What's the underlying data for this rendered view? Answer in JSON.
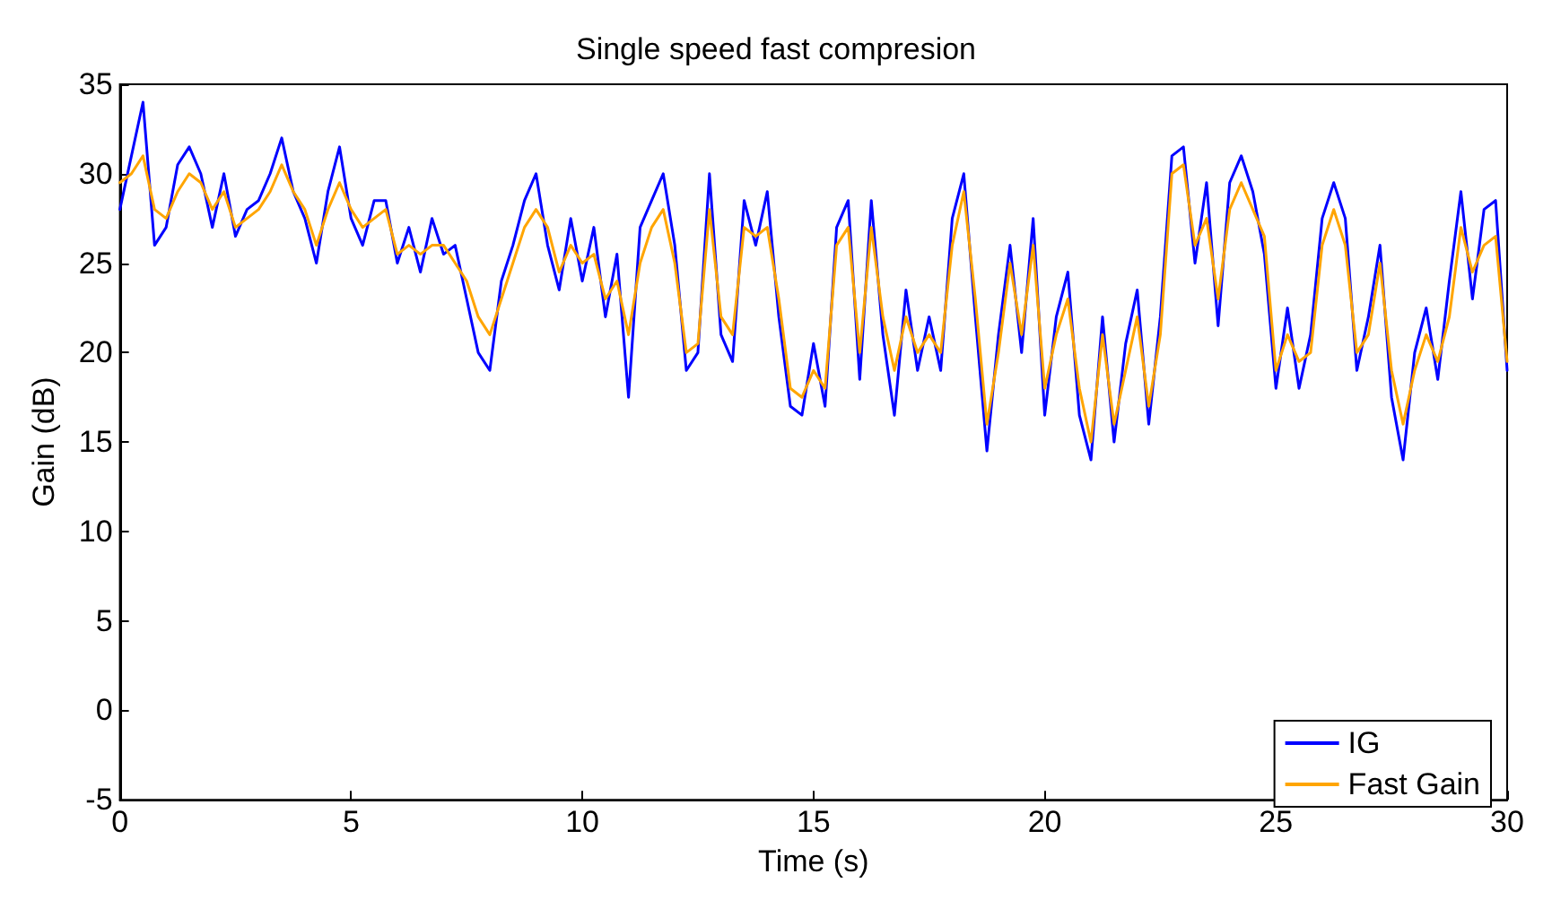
{
  "chart_data": {
    "type": "line",
    "title": "Single speed fast compresion",
    "xlabel": "Time (s)",
    "ylabel": "Gain (dB)",
    "x": [
      0,
      0.25,
      0.5,
      0.75,
      1,
      1.25,
      1.5,
      1.75,
      2,
      2.25,
      2.5,
      2.75,
      3,
      3.25,
      3.5,
      3.75,
      4,
      4.25,
      4.5,
      4.75,
      5,
      5.25,
      5.5,
      5.75,
      6,
      6.25,
      6.5,
      6.75,
      7,
      7.25,
      7.5,
      7.75,
      8,
      8.25,
      8.5,
      8.75,
      9,
      9.25,
      9.5,
      9.75,
      10,
      10.25,
      10.5,
      10.75,
      11,
      11.25,
      11.5,
      11.75,
      12,
      12.25,
      12.5,
      12.75,
      13,
      13.25,
      13.5,
      13.75,
      14,
      14.25,
      14.5,
      14.75,
      15,
      15.25,
      15.5,
      15.75,
      16,
      16.25,
      16.5,
      16.75,
      17,
      17.25,
      17.5,
      17.75,
      18,
      18.25,
      18.5,
      18.75,
      19,
      19.25,
      19.5,
      19.75,
      20,
      20.25,
      20.5,
      20.75,
      21,
      21.25,
      21.5,
      21.75,
      22,
      22.25,
      22.5,
      22.75,
      23,
      23.25,
      23.5,
      23.75,
      24,
      24.25,
      24.5,
      24.75,
      25,
      25.25,
      25.5,
      25.75,
      26,
      26.25,
      26.5,
      26.75,
      27,
      27.25,
      27.5,
      27.75,
      28,
      28.25,
      28.5,
      28.75,
      29,
      29.25,
      29.5,
      29.75,
      30
    ],
    "series": [
      {
        "name": "IG",
        "color": "#0000ff",
        "values": [
          28,
          31,
          34,
          26,
          27,
          30.5,
          31.5,
          30,
          27,
          30,
          26.5,
          28,
          28.5,
          30,
          32,
          29,
          27.5,
          25,
          29,
          31.5,
          27.5,
          26,
          28.5,
          28.5,
          25,
          27,
          24.5,
          27.5,
          25.5,
          26,
          23,
          20,
          19,
          24,
          26,
          28.5,
          30,
          26,
          23.5,
          27.5,
          24,
          27,
          22,
          25.5,
          17.5,
          27,
          28.5,
          30,
          26,
          19,
          20,
          30,
          21,
          19.5,
          28.5,
          26,
          29,
          22,
          17,
          16.5,
          20.5,
          17,
          27,
          28.5,
          18.5,
          28.5,
          21,
          16.5,
          23.5,
          19,
          22,
          19,
          27.5,
          30,
          22,
          14.5,
          21,
          26,
          20,
          27.5,
          16.5,
          22,
          24.5,
          16.5,
          14,
          22,
          15,
          20.5,
          23.5,
          16,
          22,
          31,
          31.5,
          25,
          29.5,
          21.5,
          29.5,
          31,
          29,
          25.5,
          18,
          22.5,
          18,
          21,
          27.5,
          29.5,
          27.5,
          19,
          22,
          26,
          17.5,
          14,
          20,
          22.5,
          18.5,
          24,
          29,
          23,
          28,
          28.5,
          19
        ]
      },
      {
        "name": "Fast Gain",
        "color": "#ffa500",
        "values": [
          29.5,
          30,
          31,
          28,
          27.5,
          29,
          30,
          29.5,
          28,
          29,
          27,
          27.5,
          28,
          29,
          30.5,
          29,
          28,
          26,
          28,
          29.5,
          28,
          27,
          27.5,
          28,
          25.5,
          26,
          25.5,
          26,
          26,
          25,
          24,
          22,
          21,
          23,
          25,
          27,
          28,
          27,
          24.5,
          26,
          25,
          25.5,
          23,
          24,
          21,
          25,
          27,
          28,
          25,
          20,
          20.5,
          28,
          22,
          21,
          27,
          26.5,
          27,
          23,
          18,
          17.5,
          19,
          18,
          26,
          27,
          20,
          27,
          22,
          19,
          22,
          20,
          21,
          20,
          26,
          29,
          23,
          16,
          20,
          25,
          21,
          26,
          18,
          21,
          23,
          18,
          15,
          21,
          16,
          19,
          22,
          17,
          21,
          30,
          30.5,
          26,
          27.5,
          23,
          28,
          29.5,
          28,
          26.5,
          19,
          21,
          19.5,
          20,
          26,
          28,
          26,
          20,
          21,
          25,
          19,
          16,
          19,
          21,
          19.5,
          22,
          27,
          24.5,
          26,
          26.5,
          19.5
        ]
      }
    ],
    "xlim": [
      0,
      30
    ],
    "xticks": [
      0,
      5,
      10,
      15,
      20,
      25,
      30
    ],
    "ylim": [
      -5,
      35
    ],
    "yticks": [
      -5,
      0,
      5,
      10,
      15,
      20,
      25,
      30,
      35
    ],
    "grid": false,
    "legend": "bottom right",
    "marker": "none",
    "line_style": "solid"
  }
}
